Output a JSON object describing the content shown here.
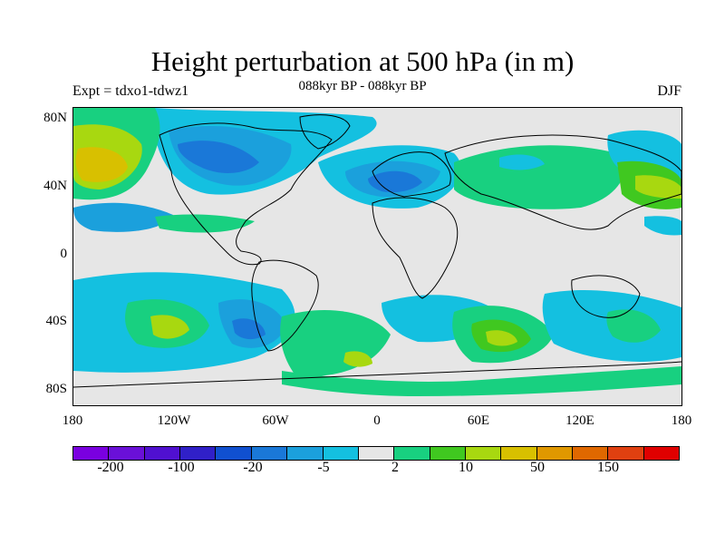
{
  "title": "Height perturbation at 500 hPa (in m)",
  "subtitle": "088kyr BP - 088kyr BP",
  "left_label": "Expt = tdxo1-tdwz1",
  "right_label": "DJF",
  "lat_labels": [
    "80N",
    "40N",
    "0",
    "40S",
    "80S"
  ],
  "lon_labels": [
    "180",
    "120W",
    "60W",
    "0",
    "60E",
    "120E",
    "180"
  ],
  "colorbar": {
    "colors": [
      "#7a00e0",
      "#6a10d8",
      "#5010d0",
      "#3020c8",
      "#1050d0",
      "#1a78d8",
      "#1ba0dc",
      "#14c0e0",
      "#e6e6e6",
      "#18d080",
      "#40c820",
      "#a8d810",
      "#d8c000",
      "#e09800",
      "#e06800",
      "#e04010",
      "#e00000"
    ],
    "tick_labels": [
      "-200",
      "-100",
      "-20",
      "-5",
      "2",
      "10",
      "50",
      "150"
    ]
  },
  "chart_data": {
    "type": "heatmap",
    "title": "Height perturbation at 500 hPa (in m)",
    "subtitle": "088kyr BP - 088kyr BP",
    "variable": "Height perturbation at 500 hPa",
    "units": "m",
    "season": "DJF",
    "experiment": "Expt = tdxo1-tdwz1",
    "lon_range": [
      -180,
      180
    ],
    "lat_range": [
      -90,
      90
    ],
    "contour_levels": [
      -200,
      -100,
      -50,
      -20,
      -10,
      -5,
      -2,
      2,
      5,
      10,
      20,
      50,
      100,
      150,
      200
    ],
    "features": [
      {
        "lon": -155,
        "lat": 45,
        "value": 50
      },
      {
        "lon": -165,
        "lat": 70,
        "value": 10
      },
      {
        "lon": -90,
        "lat": 55,
        "value": -20
      },
      {
        "lon": -60,
        "lat": 75,
        "value": -10
      },
      {
        "lon": 10,
        "lat": 42,
        "value": -20
      },
      {
        "lon": -25,
        "lat": 55,
        "value": -5
      },
      {
        "lon": 45,
        "lat": 35,
        "value": 5
      },
      {
        "lon": 95,
        "lat": 58,
        "value": 5
      },
      {
        "lon": 160,
        "lat": 60,
        "value": -5
      },
      {
        "lon": 165,
        "lat": 40,
        "value": 10
      },
      {
        "lon": 140,
        "lat": 20,
        "value": 5
      },
      {
        "lon": -135,
        "lat": 25,
        "value": -5
      },
      {
        "lon": -70,
        "lat": -50,
        "value": -20
      },
      {
        "lon": -125,
        "lat": -50,
        "value": 10
      },
      {
        "lon": -25,
        "lat": -45,
        "value": 5
      },
      {
        "lon": 0,
        "lat": -40,
        "value": -5
      },
      {
        "lon": 70,
        "lat": -50,
        "value": 20
      },
      {
        "lon": 100,
        "lat": -35,
        "value": -5
      },
      {
        "lon": 150,
        "lat": -40,
        "value": 5
      },
      {
        "lon": 165,
        "lat": -30,
        "value": -5
      }
    ]
  }
}
